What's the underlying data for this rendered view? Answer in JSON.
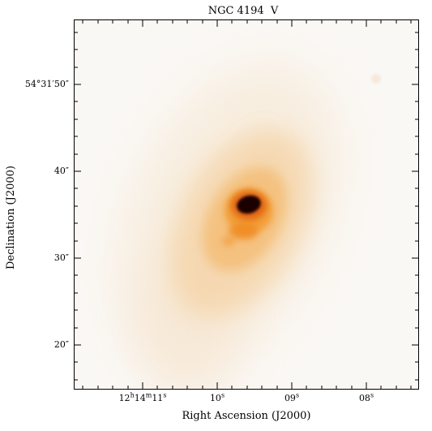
{
  "title": "NGC 4194  V",
  "x_axis_title": "Right Ascension (J2000)",
  "y_axis_title": "Declination (J2000)",
  "x_tick_labels": [
    {
      "label": "12h14m11s"
    },
    {
      "label": "10s"
    },
    {
      "label": "09s"
    },
    {
      "label": "08s"
    }
  ],
  "y_tick_labels": [
    {
      "label": "54°31′50″"
    },
    {
      "label": "40″"
    },
    {
      "label": "30″"
    },
    {
      "label": "20″"
    }
  ],
  "colors": {
    "background": "#faf8f5",
    "halo": "#f6c98a",
    "mid": "#f29a2e",
    "bright": "#e06010",
    "core": "#1a0602"
  }
}
